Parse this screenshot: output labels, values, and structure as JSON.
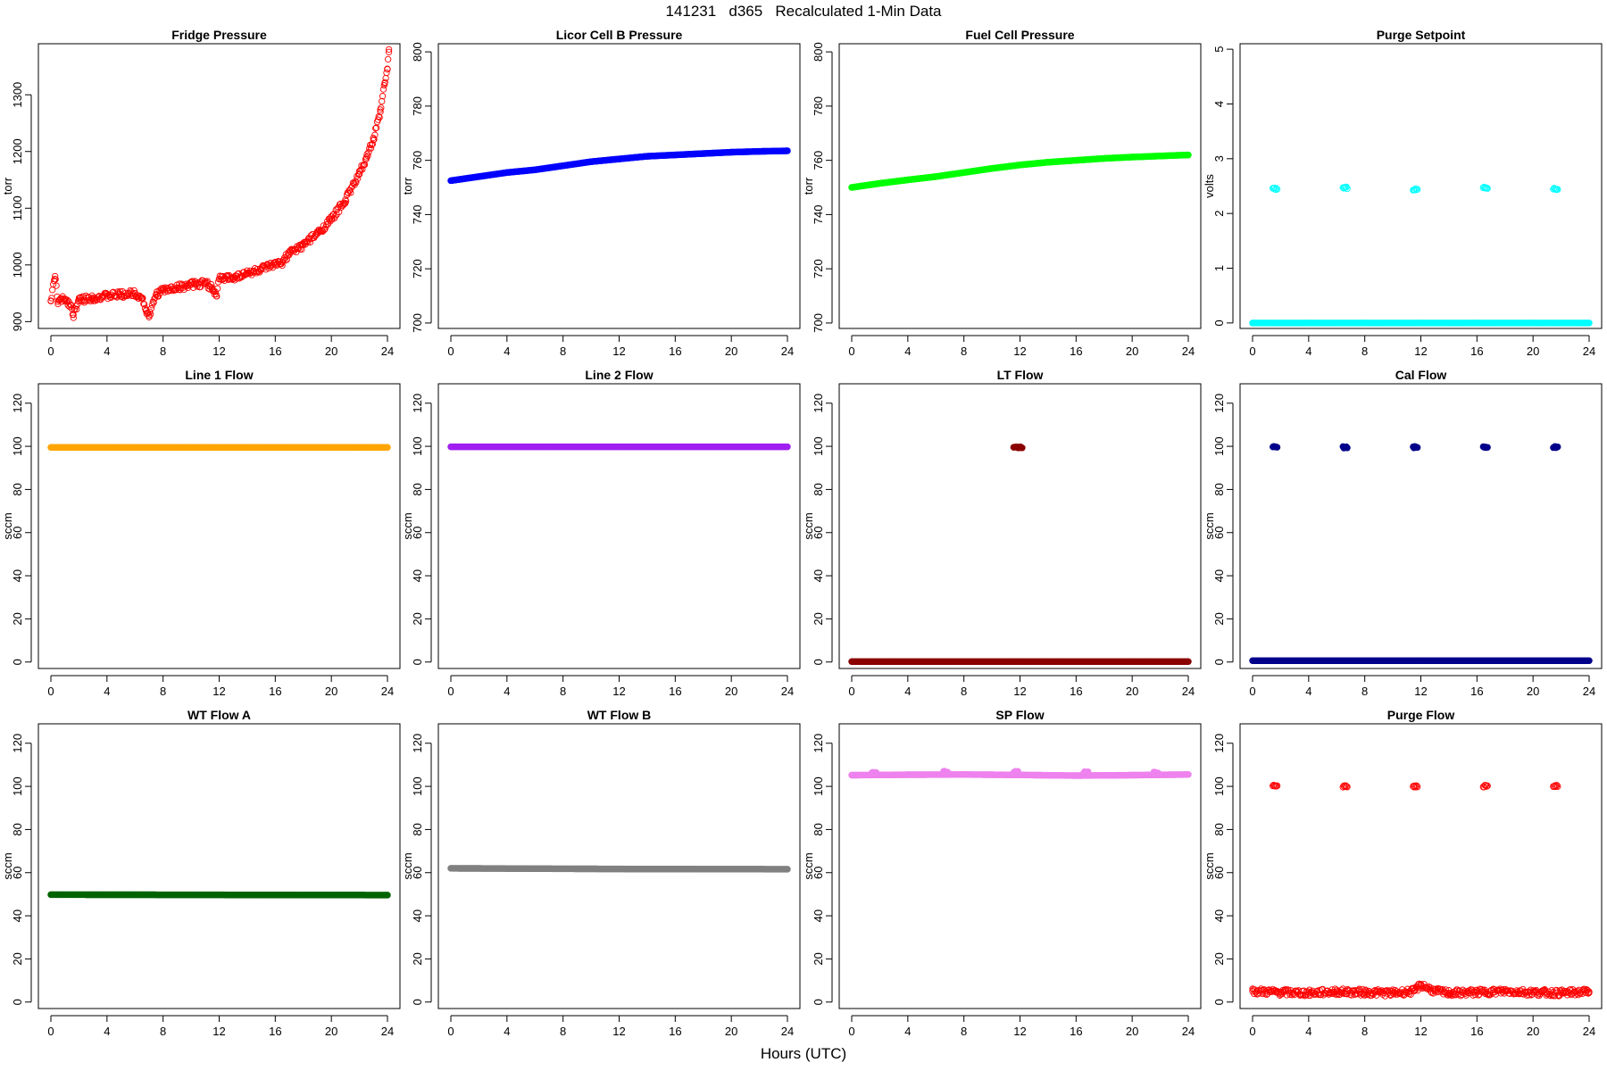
{
  "figure": {
    "title": "141231   d365   Recalculated 1-Min Data",
    "xlabel": "Hours (UTC)"
  },
  "chart_data": [
    {
      "type": "scatter",
      "title": "Fridge Pressure",
      "ylabel": "torr",
      "xlim": [
        0,
        24
      ],
      "xticks": [
        0,
        4,
        8,
        12,
        16,
        20,
        24
      ],
      "ylim": [
        888,
        1390
      ],
      "yticks": [
        900,
        1000,
        1100,
        1200,
        1300
      ],
      "series": [
        {
          "color": "#ff0000",
          "marker": "open-circle",
          "points": [
            [
              0,
              937
            ],
            [
              0.3,
              980
            ],
            [
              0.5,
              935
            ],
            [
              1,
              940
            ],
            [
              1.4,
              930
            ],
            [
              1.6,
              912
            ],
            [
              2,
              938
            ],
            [
              3,
              942
            ],
            [
              4,
              945
            ],
            [
              5,
              948
            ],
            [
              6,
              950
            ],
            [
              6.5,
              942
            ],
            [
              6.8,
              920
            ],
            [
              7,
              908
            ],
            [
              7.5,
              948
            ],
            [
              8,
              955
            ],
            [
              9,
              960
            ],
            [
              10,
              965
            ],
            [
              11,
              968
            ],
            [
              11.5,
              960
            ],
            [
              11.8,
              945
            ],
            [
              12,
              975
            ],
            [
              13,
              978
            ],
            [
              14,
              985
            ],
            [
              15,
              992
            ],
            [
              16,
              1000
            ],
            [
              16.5,
              1005
            ],
            [
              17,
              1020
            ],
            [
              18,
              1035
            ],
            [
              19,
              1055
            ],
            [
              20,
              1080
            ],
            [
              21,
              1115
            ],
            [
              22,
              1160
            ],
            [
              22.5,
              1190
            ],
            [
              23,
              1220
            ],
            [
              23.5,
              1270
            ],
            [
              23.8,
              1320
            ],
            [
              24,
              1345
            ],
            [
              24.1,
              1380
            ]
          ]
        }
      ]
    },
    {
      "type": "scatter",
      "title": "Licor Cell B Pressure",
      "ylabel": "torr",
      "xlim": [
        0,
        24
      ],
      "xticks": [
        0,
        4,
        8,
        12,
        16,
        20,
        24
      ],
      "ylim": [
        698,
        803
      ],
      "yticks": [
        700,
        720,
        740,
        760,
        780,
        800
      ],
      "series": [
        {
          "color": "#0000ff",
          "marker": "filled-circle",
          "points": [
            [
              0,
              752.5
            ],
            [
              2,
              754
            ],
            [
              4,
              755.5
            ],
            [
              6,
              756.5
            ],
            [
              8,
              758
            ],
            [
              10,
              759.5
            ],
            [
              12,
              760.5
            ],
            [
              14,
              761.5
            ],
            [
              16,
              762
            ],
            [
              18,
              762.5
            ],
            [
              20,
              763
            ],
            [
              22,
              763.3
            ],
            [
              24,
              763.5
            ]
          ]
        }
      ]
    },
    {
      "type": "scatter",
      "title": "Fuel Cell Pressure",
      "ylabel": "torr",
      "xlim": [
        0,
        24
      ],
      "xticks": [
        0,
        4,
        8,
        12,
        16,
        20,
        24
      ],
      "ylim": [
        698,
        803
      ],
      "yticks": [
        700,
        720,
        740,
        760,
        780,
        800
      ],
      "series": [
        {
          "color": "#00ff00",
          "marker": "filled-circle",
          "points": [
            [
              0,
              750
            ],
            [
              2,
              751.5
            ],
            [
              4,
              752.8
            ],
            [
              6,
              754
            ],
            [
              8,
              755.5
            ],
            [
              10,
              757
            ],
            [
              12,
              758.3
            ],
            [
              14,
              759.3
            ],
            [
              16,
              760
            ],
            [
              18,
              760.7
            ],
            [
              20,
              761.2
            ],
            [
              22,
              761.6
            ],
            [
              24,
              762
            ]
          ]
        }
      ]
    },
    {
      "type": "scatter",
      "title": "Purge Setpoint",
      "ylabel": "volts",
      "xlim": [
        0,
        24
      ],
      "xticks": [
        0,
        4,
        8,
        12,
        16,
        20,
        24
      ],
      "ylim": [
        -0.1,
        5.1
      ],
      "yticks": [
        0,
        1,
        2,
        3,
        4,
        5
      ],
      "series": [
        {
          "color": "#00ffff",
          "marker": "filled-circle",
          "points": [
            [
              0,
              0
            ],
            [
              4,
              0
            ],
            [
              8,
              0
            ],
            [
              12,
              0
            ],
            [
              16,
              0
            ],
            [
              20,
              0
            ],
            [
              24,
              0
            ]
          ]
        },
        {
          "color": "#00ffff",
          "marker": "open-circle",
          "points": [
            [
              1.6,
              2.45
            ],
            [
              6.6,
              2.47
            ],
            [
              11.6,
              2.44
            ],
            [
              16.6,
              2.47
            ],
            [
              21.6,
              2.45
            ]
          ]
        }
      ]
    },
    {
      "type": "scatter",
      "title": "Line 1 Flow",
      "ylabel": "sccm",
      "xlim": [
        0,
        24
      ],
      "xticks": [
        0,
        4,
        8,
        12,
        16,
        20,
        24
      ],
      "ylim": [
        -3,
        129
      ],
      "yticks": [
        0,
        20,
        40,
        60,
        80,
        100,
        120
      ],
      "series": [
        {
          "color": "#ffa500",
          "marker": "filled-circle",
          "points": [
            [
              0,
              99.5
            ],
            [
              12,
              99.5
            ],
            [
              24,
              99.5
            ]
          ]
        }
      ]
    },
    {
      "type": "scatter",
      "title": "Line 2 Flow",
      "ylabel": "sccm",
      "xlim": [
        0,
        24
      ],
      "xticks": [
        0,
        4,
        8,
        12,
        16,
        20,
        24
      ],
      "ylim": [
        -3,
        129
      ],
      "yticks": [
        0,
        20,
        40,
        60,
        80,
        100,
        120
      ],
      "series": [
        {
          "color": "#a020f0",
          "marker": "filled-circle",
          "points": [
            [
              0,
              99.8
            ],
            [
              12,
              99.8
            ],
            [
              24,
              99.8
            ]
          ]
        }
      ]
    },
    {
      "type": "scatter",
      "title": "LT Flow",
      "ylabel": "sccm",
      "xlim": [
        0,
        24
      ],
      "xticks": [
        0,
        4,
        8,
        12,
        16,
        20,
        24
      ],
      "ylim": [
        -3,
        129
      ],
      "yticks": [
        0,
        20,
        40,
        60,
        80,
        100,
        120
      ],
      "series": [
        {
          "color": "#8b0000",
          "marker": "filled-circle",
          "points": [
            [
              0,
              0.2
            ],
            [
              12,
              0.2
            ],
            [
              24,
              0.2
            ]
          ]
        },
        {
          "color": "#8b0000",
          "marker": "filled-circle",
          "points": [
            [
              11.7,
              99.6
            ],
            [
              12.0,
              99.6
            ]
          ]
        }
      ]
    },
    {
      "type": "scatter",
      "title": "Cal Flow",
      "ylabel": "sccm",
      "xlim": [
        0,
        24
      ],
      "xticks": [
        0,
        4,
        8,
        12,
        16,
        20,
        24
      ],
      "ylim": [
        -3,
        129
      ],
      "yticks": [
        0,
        20,
        40,
        60,
        80,
        100,
        120
      ],
      "series": [
        {
          "color": "#00008b",
          "marker": "filled-circle",
          "points": [
            [
              0,
              0.6
            ],
            [
              12,
              0.6
            ],
            [
              24,
              0.6
            ]
          ]
        },
        {
          "color": "#00008b",
          "marker": "filled-circle",
          "points": [
            [
              1.6,
              99.6
            ],
            [
              6.6,
              99.6
            ],
            [
              11.6,
              99.6
            ],
            [
              16.6,
              99.6
            ],
            [
              21.6,
              99.6
            ]
          ]
        }
      ]
    },
    {
      "type": "scatter",
      "title": "WT Flow A",
      "ylabel": "sccm",
      "xlim": [
        0,
        24
      ],
      "xticks": [
        0,
        4,
        8,
        12,
        16,
        20,
        24
      ],
      "ylim": [
        -3,
        129
      ],
      "yticks": [
        0,
        20,
        40,
        60,
        80,
        100,
        120
      ],
      "series": [
        {
          "color": "#006400",
          "marker": "filled-circle",
          "points": [
            [
              0,
              49.8
            ],
            [
              12,
              49.7
            ],
            [
              24,
              49.6
            ]
          ]
        }
      ]
    },
    {
      "type": "scatter",
      "title": "WT Flow B",
      "ylabel": "sccm",
      "xlim": [
        0,
        24
      ],
      "xticks": [
        0,
        4,
        8,
        12,
        16,
        20,
        24
      ],
      "ylim": [
        -3,
        129
      ],
      "yticks": [
        0,
        20,
        40,
        60,
        80,
        100,
        120
      ],
      "series": [
        {
          "color": "#808080",
          "marker": "filled-circle",
          "points": [
            [
              0,
              62
            ],
            [
              12,
              61.7
            ],
            [
              24,
              61.6
            ]
          ]
        }
      ]
    },
    {
      "type": "scatter",
      "title": "SP Flow",
      "ylabel": "sccm",
      "xlim": [
        0,
        24
      ],
      "xticks": [
        0,
        4,
        8,
        12,
        16,
        20,
        24
      ],
      "ylim": [
        -3,
        129
      ],
      "yticks": [
        0,
        20,
        40,
        60,
        80,
        100,
        120
      ],
      "series": [
        {
          "color": "#ee82ee",
          "marker": "filled-circle",
          "points": [
            [
              0,
              105.2
            ],
            [
              4,
              105.4
            ],
            [
              8,
              105.5
            ],
            [
              12,
              105.3
            ],
            [
              16,
              105
            ],
            [
              20,
              105.2
            ],
            [
              24,
              105.5
            ]
          ]
        },
        {
          "color": "#ee82ee",
          "marker": "filled-circle",
          "points": [
            [
              1.6,
              106.5
            ],
            [
              6.7,
              106.8
            ],
            [
              11.7,
              106.6
            ],
            [
              16.7,
              106.5
            ],
            [
              21.7,
              106.3
            ]
          ]
        }
      ]
    },
    {
      "type": "scatter",
      "title": "Purge Flow",
      "ylabel": "sccm",
      "xlim": [
        0,
        24
      ],
      "xticks": [
        0,
        4,
        8,
        12,
        16,
        20,
        24
      ],
      "ylim": [
        -3,
        129
      ],
      "yticks": [
        0,
        20,
        40,
        60,
        80,
        100,
        120
      ],
      "series": [
        {
          "color": "#ff0000",
          "marker": "open-circle",
          "points": [
            [
              0,
              5
            ],
            [
              2,
              4.5
            ],
            [
              4,
              4.2
            ],
            [
              6,
              4.8
            ],
            [
              8,
              4.5
            ],
            [
              10,
              4.2
            ],
            [
              11.5,
              5
            ],
            [
              12,
              8
            ],
            [
              13,
              5
            ],
            [
              14,
              4.2
            ],
            [
              16,
              4.5
            ],
            [
              18,
              5
            ],
            [
              20,
              4.5
            ],
            [
              22,
              4.2
            ],
            [
              24,
              4.8
            ]
          ]
        },
        {
          "color": "#ff0000",
          "marker": "open-circle",
          "points": [
            [
              1.6,
              100.2
            ],
            [
              6.6,
              100
            ],
            [
              11.6,
              100.1
            ],
            [
              16.6,
              100.1
            ],
            [
              21.6,
              100.2
            ]
          ]
        }
      ]
    }
  ]
}
